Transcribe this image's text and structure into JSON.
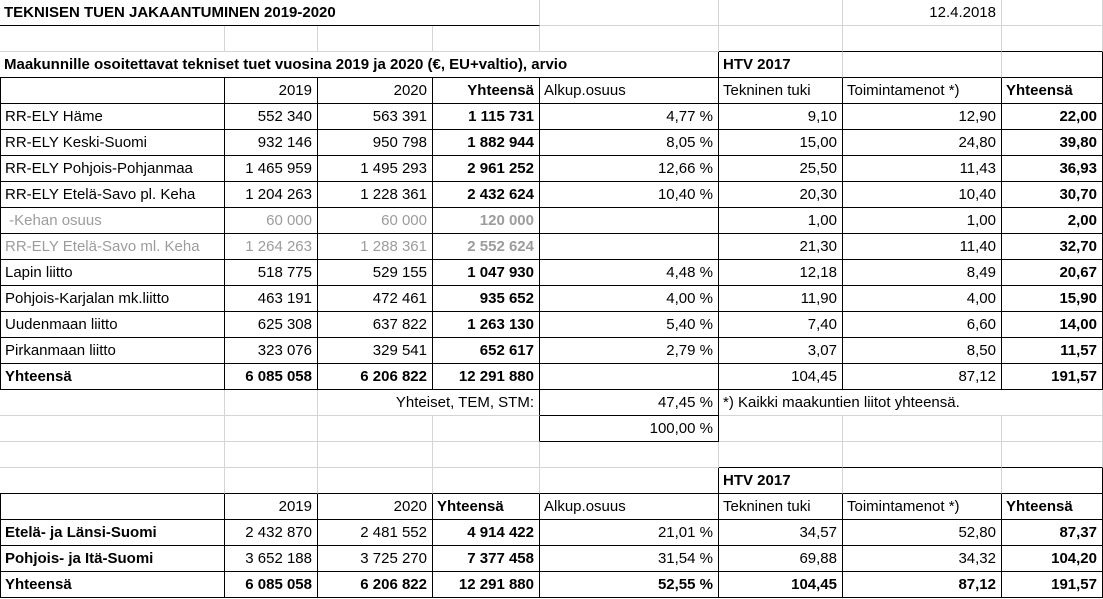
{
  "sheet": {
    "title": "TEKNISEN TUEN JAKAANTUMINEN 2019-2020",
    "date": "12.4.2018",
    "table1": {
      "caption": "Maakunnille osoitettavat tekniset tuet vuosina 2019 ja 2020 (€, EU+valtio), arvio",
      "htv_header": "HTV 2017",
      "col_headers": {
        "y2019": "2019",
        "y2020": "2020",
        "total": "Yhteensä",
        "share": "Alkup.osuus",
        "tech": "Tekninen tuki",
        "oper": "Toimintamenot *)",
        "htv_total": "Yhteensä"
      },
      "rows": [
        {
          "label": "RR-ELY Häme",
          "y2019": "552 340",
          "y2020": "563 391",
          "total": "1 115 731",
          "share": "4,77 %",
          "tech": "9,10",
          "oper": "12,90",
          "htv_total": "22,00",
          "gray": false
        },
        {
          "label": "RR-ELY Keski-Suomi",
          "y2019": "932 146",
          "y2020": "950 798",
          "total": "1 882 944",
          "share": "8,05 %",
          "tech": "15,00",
          "oper": "24,80",
          "htv_total": "39,80",
          "gray": false
        },
        {
          "label": "RR-ELY Pohjois-Pohjanmaa",
          "y2019": "1 465 959",
          "y2020": "1 495 293",
          "total": "2 961 252",
          "share": "12,66 %",
          "tech": "25,50",
          "oper": "11,43",
          "htv_total": "36,93",
          "gray": false
        },
        {
          "label": "RR-ELY Etelä-Savo pl. Keha",
          "y2019": "1 204 263",
          "y2020": "1 228 361",
          "total": "2 432 624",
          "share": "10,40 %",
          "tech": "20,30",
          "oper": "10,40",
          "htv_total": "30,70",
          "gray": false
        },
        {
          "label": " -Kehan osuus",
          "y2019": "60 000",
          "y2020": "60 000",
          "total": "120 000",
          "share": "",
          "tech": "1,00",
          "oper": "1,00",
          "htv_total": "2,00",
          "gray": true
        },
        {
          "label": "RR-ELY Etelä-Savo ml. Keha",
          "y2019": "1 264 263",
          "y2020": "1 288 361",
          "total": "2 552 624",
          "share": "",
          "tech": "21,30",
          "oper": "11,40",
          "htv_total": "32,70",
          "gray": true
        },
        {
          "label": "Lapin liitto",
          "y2019": "518 775",
          "y2020": "529 155",
          "total": "1 047 930",
          "share": "4,48 %",
          "tech": "12,18",
          "oper": "8,49",
          "htv_total": "20,67",
          "gray": false
        },
        {
          "label": "Pohjois-Karjalan mk.liitto",
          "y2019": "463 191",
          "y2020": "472 461",
          "total": "935 652",
          "share": "4,00 %",
          "tech": "11,90",
          "oper": "4,00",
          "htv_total": "15,90",
          "gray": false
        },
        {
          "label": "Uudenmaan liitto",
          "y2019": "625 308",
          "y2020": "637 822",
          "total": "1 263 130",
          "share": "5,40 %",
          "tech": "7,40",
          "oper": "6,60",
          "htv_total": "14,00",
          "gray": false
        },
        {
          "label": "Pirkanmaan liitto",
          "y2019": "323 076",
          "y2020": "329 541",
          "total": "652 617",
          "share": "2,79 %",
          "tech": "3,07",
          "oper": "8,50",
          "htv_total": "11,57",
          "gray": false
        }
      ],
      "total_row": {
        "label": "Yhteensä",
        "y2019": "6 085 058",
        "y2020": "6 206 822",
        "total": "12 291 880",
        "share": "",
        "tech": "104,45",
        "oper": "87,12",
        "htv_total": "191,57"
      },
      "shared_row": {
        "label": "Yhteiset, TEM, STM:",
        "share": "47,45 %"
      },
      "grand_share": "100,00 %",
      "footnote": "*) Kaikki maakuntien liitot yhteensä."
    },
    "table2": {
      "htv_header": "HTV 2017",
      "col_headers": {
        "y2019": "2019",
        "y2020": "2020",
        "total": "Yhteensä",
        "share": "Alkup.osuus",
        "tech": "Tekninen tuki",
        "oper": "Toimintamenot *)",
        "htv_total": "Yhteensä"
      },
      "rows": [
        {
          "label": "Etelä- ja Länsi-Suomi",
          "y2019": "2 432 870",
          "y2020": "2 481 552",
          "total": "4 914 422",
          "share": "21,01 %",
          "tech": "34,57",
          "oper": "52,80",
          "htv_total": "87,37",
          "bold_all": false
        },
        {
          "label": "Pohjois- ja Itä-Suomi",
          "y2019": "3 652 188",
          "y2020": "3 725 270",
          "total": "7 377 458",
          "share": "31,54 %",
          "tech": "69,88",
          "oper": "34,32",
          "htv_total": "104,20",
          "bold_all": false
        },
        {
          "label": "Yhteensä",
          "y2019": "6 085 058",
          "y2020": "6 206 822",
          "total": "12 291 880",
          "share": "52,55 %",
          "tech": "104,45",
          "oper": "87,12",
          "htv_total": "191,57",
          "bold_all": true
        }
      ]
    },
    "colors": {
      "background": "#ffffff",
      "text": "#000000",
      "gray_text": "#9c9c9c",
      "gridline": "#d4d4d4",
      "border": "#000000"
    }
  }
}
